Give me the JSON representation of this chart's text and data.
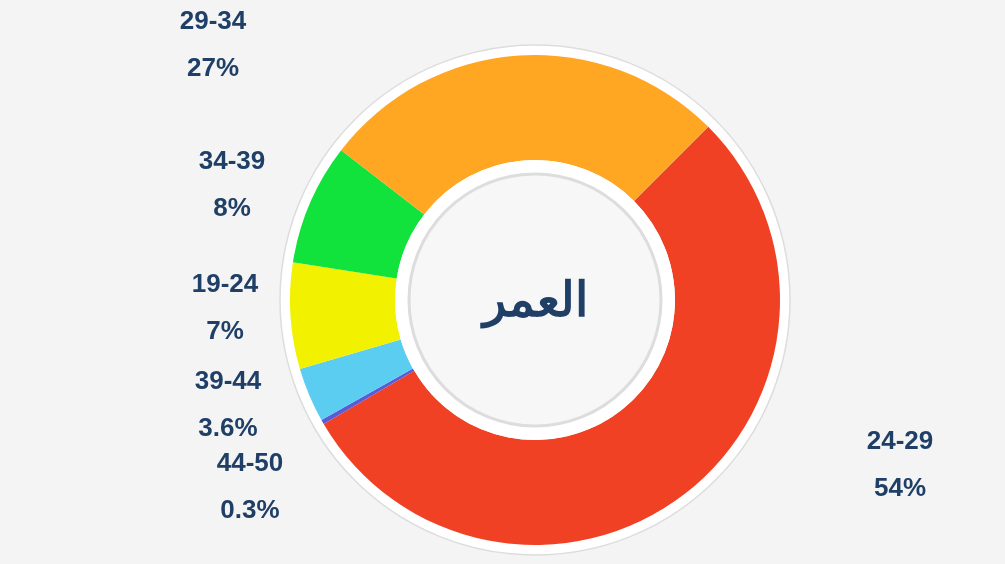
{
  "chart_data": {
    "type": "donut",
    "title": "العمر",
    "categories": [
      "24-29",
      "44-50",
      "39-44",
      "19-24",
      "34-39",
      "29-34"
    ],
    "values": [
      54,
      0.3,
      3.6,
      7,
      8,
      27
    ],
    "value_labels": [
      "54%",
      "0.3%",
      "3.6%",
      "7%",
      "8%",
      "27%"
    ],
    "colors": [
      "#f04124",
      "#5b5bd6",
      "#5bcdf0",
      "#f2f200",
      "#12e23c",
      "#ffa623"
    ]
  }
}
